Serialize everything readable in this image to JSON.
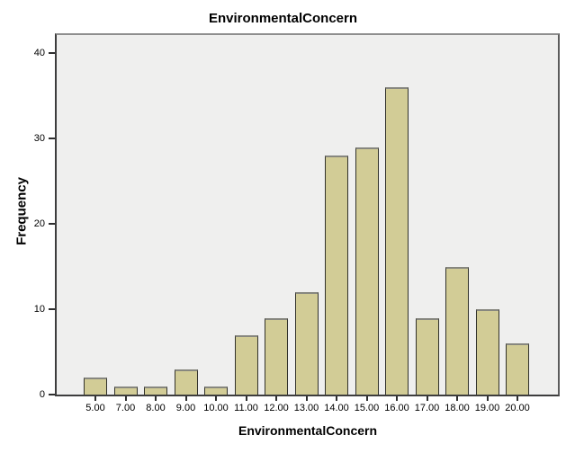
{
  "window": {
    "background": "#ffffff"
  },
  "chart_data": {
    "type": "bar",
    "title": "EnvironmentalConcern",
    "xlabel": "EnvironmentalConcern",
    "ylabel": "Frequency",
    "categories": [
      "5.00",
      "7.00",
      "8.00",
      "9.00",
      "10.00",
      "11.00",
      "12.00",
      "13.00",
      "14.00",
      "15.00",
      "16.00",
      "17.00",
      "18.00",
      "19.00",
      "20.00"
    ],
    "values": [
      2,
      1,
      1,
      3,
      1,
      7,
      9,
      12,
      28,
      29,
      36,
      9,
      15,
      10,
      6
    ],
    "y_ticks": [
      0,
      10,
      20,
      30,
      40
    ],
    "ylim": [
      0,
      42.5
    ],
    "grid": false,
    "legend": "none",
    "colors": {
      "bar_fill": "#d2cc96",
      "bar_border": "#32322b",
      "bar_border_top": "#87877f",
      "plot_background": "#efefee",
      "frame": "#5c5c5c",
      "text": "#000000"
    }
  }
}
